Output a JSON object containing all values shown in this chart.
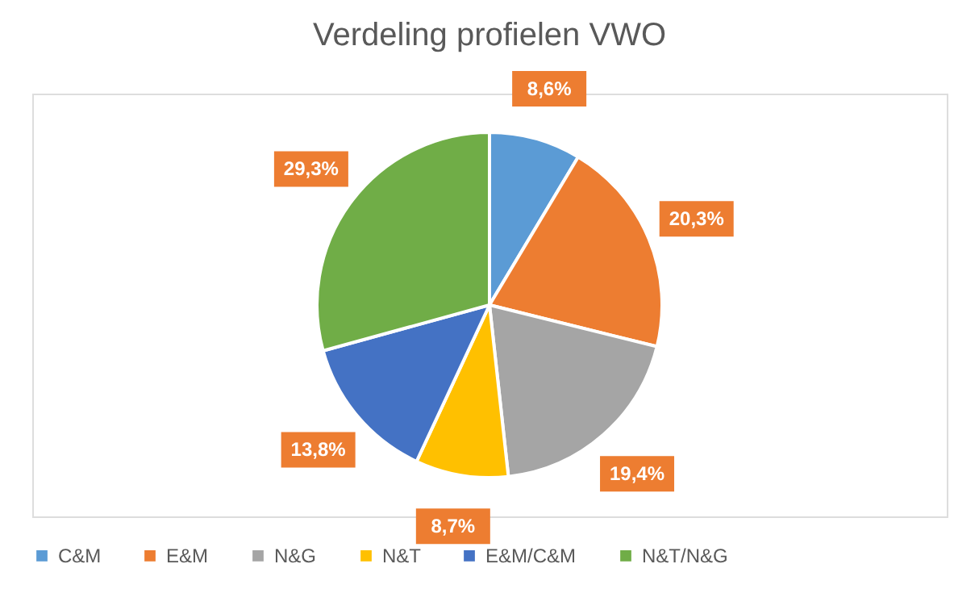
{
  "chart_data": {
    "type": "pie",
    "title": "Verdeling profielen VWO",
    "categories": [
      "C&M",
      "E&M",
      "N&G",
      "N&T",
      "E&M/C&M",
      "N&T/N&G"
    ],
    "values": [
      8.6,
      20.3,
      19.4,
      8.7,
      13.8,
      29.3
    ],
    "value_labels": [
      "8,6%",
      "20,3%",
      "19,4%",
      "8,7%",
      "13,8%",
      "29,3%"
    ],
    "colors": [
      "#5b9bd5",
      "#ed7d31",
      "#a5a5a5",
      "#ffc000",
      "#4472c4",
      "#70ad47"
    ],
    "legend": "bottom"
  }
}
